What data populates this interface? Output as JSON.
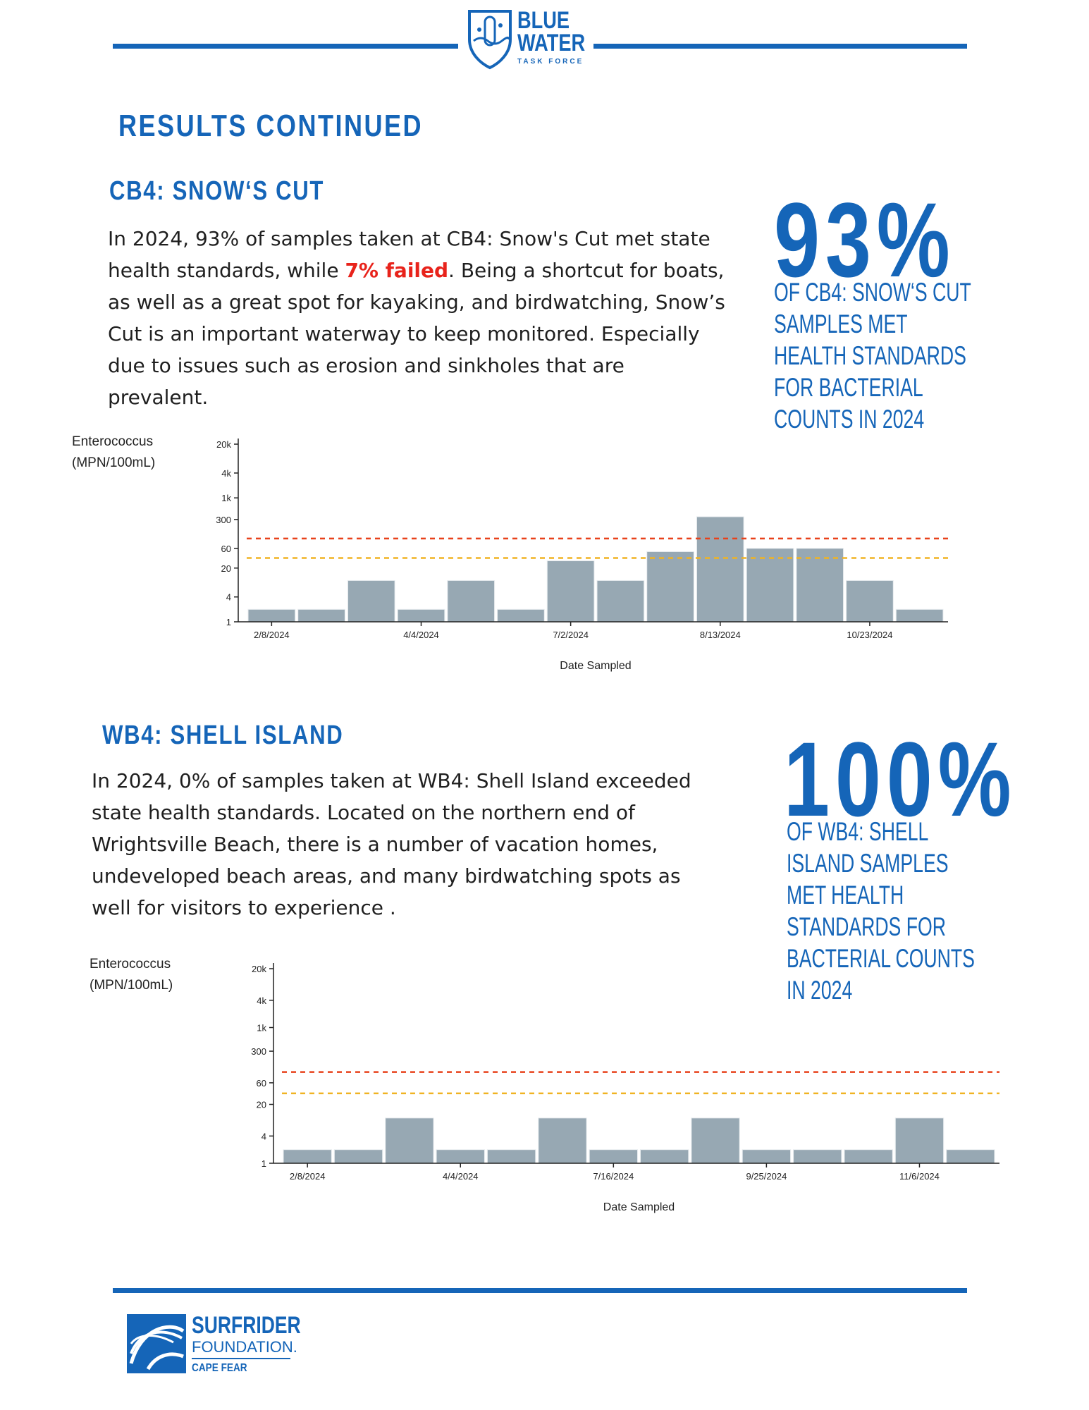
{
  "header": {
    "logo_line1": "BLUE",
    "logo_line2": "WATER",
    "logo_sub": "TASK FORCE"
  },
  "page_title": "RESULTS CONTINUED",
  "section1": {
    "title": "CB4: SNOW‘S CUT",
    "body_before": "In 2024, 93% of samples taken at CB4: Snow's Cut met state health standards, while ",
    "body_failed": "7% failed",
    "body_after": ". Being a shortcut for boats, as well as a great spot for kayaking, and birdwatching, Snow’s Cut is an important waterway to keep monitored. Especially due to issues such as erosion and sinkholes that are prevalent.",
    "stat_value": "93%",
    "stat_caption": "of CB4: Snow‘s Cut samples met health standards for bacterial counts in 2024"
  },
  "section2": {
    "title": "WB4: SHELL ISLAND",
    "body": "In 2024, 0% of samples taken at WB4: Shell Island exceeded state health standards. Located on the northern end of Wrightsville Beach, there is a number of vacation homes, undeveloped beach areas, and many birdwatching spots as well for visitors to experience .",
    "stat_value": "100%",
    "stat_caption": "of WB4: Shell Island samples met health standards for bacterial counts in 2024"
  },
  "footer": {
    "logo_line1": "SURFRIDER",
    "logo_line2": "FOUNDATION.",
    "logo_line3": "CAPE FEAR"
  },
  "colors": {
    "accent": "#1565b8",
    "bar": "#97a8b3",
    "threshold_high": "#e8421b",
    "threshold_low": "#f0b323",
    "failed_text": "#e8231b"
  },
  "chart_data": [
    {
      "type": "bar",
      "ylabel_line1": "Enterococcus",
      "ylabel_line2": "(MPN/100mL)",
      "xlabel": "Date Sampled",
      "yscale": "log",
      "ylim": [
        1,
        20000
      ],
      "yticks": [
        1,
        4,
        20,
        60,
        300,
        1000,
        4000,
        20000
      ],
      "ytick_labels": [
        "1",
        "4",
        "20",
        "60",
        "300",
        "1k",
        "4k",
        "20k"
      ],
      "xtick_labels": [
        {
          "index": 0,
          "label": "2/8/2024"
        },
        {
          "index": 3,
          "label": "4/4/2024"
        },
        {
          "index": 6,
          "label": "7/2/2024"
        },
        {
          "index": 9,
          "label": "8/13/2024"
        },
        {
          "index": 12,
          "label": "10/23/2024"
        }
      ],
      "values": [
        2,
        2,
        10,
        2,
        10,
        2,
        30,
        10,
        50,
        350,
        60,
        60,
        10,
        2
      ],
      "thresholds": [
        {
          "value": 104,
          "color": "#e8421b"
        },
        {
          "value": 35,
          "color": "#f0b323"
        }
      ]
    },
    {
      "type": "bar",
      "ylabel_line1": "Enterococcus",
      "ylabel_line2": "(MPN/100mL)",
      "xlabel": "Date Sampled",
      "yscale": "log",
      "ylim": [
        1,
        20000
      ],
      "yticks": [
        1,
        4,
        20,
        60,
        300,
        1000,
        4000,
        20000
      ],
      "ytick_labels": [
        "1",
        "4",
        "20",
        "60",
        "300",
        "1k",
        "4k",
        "20k"
      ],
      "xtick_labels": [
        {
          "index": 0,
          "label": "2/8/2024"
        },
        {
          "index": 3,
          "label": "4/4/2024"
        },
        {
          "index": 6,
          "label": "7/16/2024"
        },
        {
          "index": 9,
          "label": "9/25/2024"
        },
        {
          "index": 12,
          "label": "11/6/2024"
        }
      ],
      "values": [
        2,
        2,
        10,
        2,
        2,
        10,
        2,
        2,
        10,
        2,
        2,
        2,
        10,
        2
      ],
      "thresholds": [
        {
          "value": 104,
          "color": "#e8421b"
        },
        {
          "value": 35,
          "color": "#f0b323"
        }
      ]
    }
  ]
}
